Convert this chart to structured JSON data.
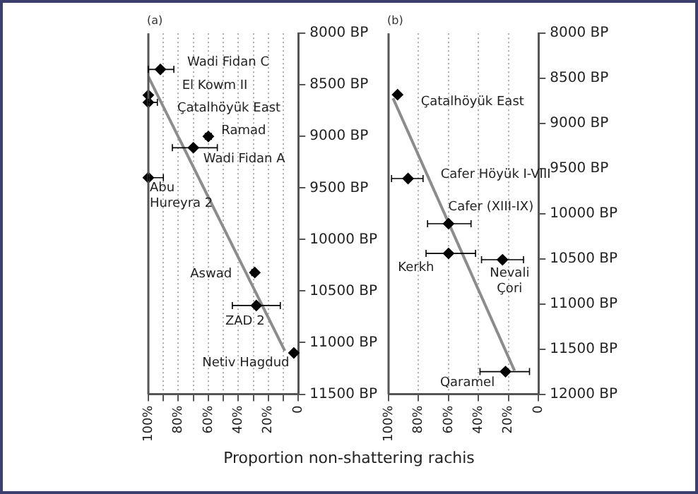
{
  "chart_data": [
    {
      "type": "scatter",
      "title": "(a)",
      "xlabel": "Proportion non-shattering rachis",
      "xlim": [
        100,
        0
      ],
      "xticks": [
        {
          "value": 100,
          "label": "100%"
        },
        {
          "value": 90,
          "label": null
        },
        {
          "value": 80,
          "label": "80%"
        },
        {
          "value": 70,
          "label": null
        },
        {
          "value": 60,
          "label": "60%"
        },
        {
          "value": 50,
          "label": null
        },
        {
          "value": 40,
          "label": "40%"
        },
        {
          "value": 30,
          "label": null
        },
        {
          "value": 20,
          "label": "20%"
        },
        {
          "value": 10,
          "label": null
        },
        0
      ],
      "ylim": [
        11500,
        8000
      ],
      "yticks": [
        {
          "value": 8000,
          "label": "8000 BP"
        },
        {
          "value": 8500,
          "label": "8500 BP"
        },
        {
          "value": 9000,
          "label": "9000 BP"
        },
        {
          "value": 9500,
          "label": "9500 BP"
        },
        {
          "value": 10000,
          "label": "10000 BP"
        },
        {
          "value": 10500,
          "label": "10500 BP"
        },
        {
          "value": 11000,
          "label": "11000 BP"
        },
        {
          "value": 11500,
          "label": "11500 BP"
        }
      ],
      "grid": "x",
      "legend": false,
      "series": [
        {
          "color": "#000000",
          "marker": "diamond",
          "x": [
            92,
            100,
            100,
            60,
            70,
            100,
            29,
            28,
            3
          ],
          "values": [
            8350,
            8600,
            8670,
            9000,
            9110,
            9400,
            10320,
            10640,
            11100
          ],
          "xerrors": [
            [
              83,
              100
            ],
            null,
            [
              94,
              100
            ],
            [
              58,
              62
            ],
            [
              54,
              84
            ],
            [
              90,
              100
            ],
            [
              28,
              31
            ],
            [
              12,
              44
            ],
            null
          ]
        },
        {
          "type": "line",
          "color": "#8c8c8c",
          "x": [
            100,
            9
          ],
          "values": [
            8420,
            11080
          ]
        }
      ],
      "annotations": [
        {
          "text": "Wadi Fidan C",
          "x": 92,
          "y": 8350
        },
        {
          "text": "El Kowm II",
          "x": 100,
          "y": 8600
        },
        {
          "text": "Çatalhöyük East",
          "x": 100,
          "y": 8670
        },
        {
          "text": "Ramad",
          "x": 60,
          "y": 9000
        },
        {
          "text": "Wadi Fidan A",
          "x": 70,
          "y": 9110
        },
        {
          "text": "Abu\nHureyra 2",
          "x": 100,
          "y": 9400
        },
        {
          "text": "Aswad",
          "x": 29,
          "y": 10320
        },
        {
          "text": "ZAD 2",
          "x": 28,
          "y": 10640
        },
        {
          "text": "Netiv Hagdud",
          "x": 3,
          "y": 11100
        }
      ]
    },
    {
      "type": "scatter",
      "title": "(b)",
      "xlim": [
        100,
        0
      ],
      "xticks": [
        {
          "value": 100,
          "label": "100%"
        },
        {
          "value": 80,
          "label": "80%"
        },
        {
          "value": 60,
          "label": "60%"
        },
        {
          "value": 40,
          "label": "40%"
        },
        {
          "value": 20,
          "label": "20%"
        },
        0
      ],
      "ylim": [
        12000,
        8000
      ],
      "yticks": [
        {
          "value": 8000,
          "label": "8000 BP"
        },
        {
          "value": 8500,
          "label": "8500 BP"
        },
        {
          "value": 9000,
          "label": "9000 BP"
        },
        {
          "value": 9500,
          "label": "9500 BP"
        },
        {
          "value": 10000,
          "label": "10000 BP"
        },
        {
          "value": 10500,
          "label": "10500 BP"
        },
        {
          "value": 11000,
          "label": "11000 BP"
        },
        {
          "value": 11500,
          "label": "11500 BP"
        },
        {
          "value": 12000,
          "label": "12000 BP"
        }
      ],
      "grid": "x",
      "legend": false,
      "series": [
        {
          "color": "#000000",
          "marker": "diamond",
          "x": [
            94,
            87,
            60,
            60,
            24,
            22
          ],
          "values": [
            8680,
            9610,
            10110,
            10440,
            10510,
            11750
          ],
          "xerrors": [
            null,
            [
              77,
              98
            ],
            [
              45,
              74
            ],
            [
              42,
              75
            ],
            [
              10,
              38
            ],
            [
              6,
              39
            ]
          ]
        },
        {
          "type": "line",
          "color": "#8c8c8c",
          "x": [
            97,
            16
          ],
          "values": [
            8720,
            11740
          ]
        }
      ],
      "annotations": [
        {
          "text": "Çatalhöyük East",
          "x": 94,
          "y": 8680
        },
        {
          "text": "Cafer Höyük I-VIII",
          "x": 87,
          "y": 9610
        },
        {
          "text": "Cafer (XIII-IX)",
          "x": 60,
          "y": 10110
        },
        {
          "text": "Kerkh",
          "x": 60,
          "y": 10440
        },
        {
          "text": "Nevali\nÇori",
          "x": 24,
          "y": 10510
        },
        {
          "text": "Qaramel",
          "x": 22,
          "y": 11750
        }
      ]
    }
  ]
}
